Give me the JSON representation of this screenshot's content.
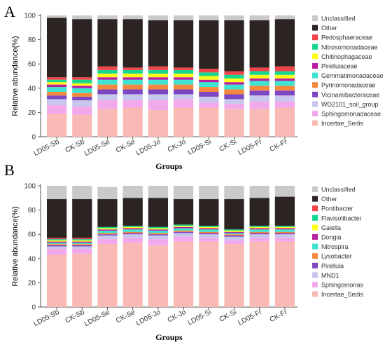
{
  "chart_data": [
    {
      "type": "bar",
      "stacked": true,
      "panel_label": "A",
      "xlabel": "Groups",
      "ylabel": "Relative abundance(%)",
      "ylim": [
        0,
        100
      ],
      "yticks": [
        0,
        20,
        40,
        60,
        80,
        100
      ],
      "categories": [
        "LD05-Sb",
        "CK-Sb",
        "LD05-Se",
        "CK-Se",
        "LD05-Jo",
        "CK-Jo",
        "LD05-Si",
        "CK-Si",
        "LD05-Fr",
        "CK-Fr"
      ],
      "legend_position": "right",
      "series": [
        {
          "name": "Incertae_Sedis",
          "color": "#f9b9b5",
          "values": [
            19,
            18,
            23,
            24,
            22,
            24,
            24,
            23,
            23,
            24
          ]
        },
        {
          "name": "Sphingomonadaceae",
          "color": "#f2a9ec",
          "values": [
            7,
            7,
            7,
            6,
            8,
            7,
            4,
            4,
            6,
            5
          ]
        },
        {
          "name": "WD2101_soil_group",
          "color": "#c8c6ec",
          "values": [
            5,
            5,
            5,
            5,
            5,
            4,
            5,
            4,
            5,
            5
          ]
        },
        {
          "name": "Vicinamibacteraceae",
          "color": "#7d46c2",
          "values": [
            3,
            3,
            4,
            4,
            4,
            4,
            4,
            4,
            4,
            4
          ]
        },
        {
          "name": "Pyrinomonadaceae",
          "color": "#f5883d",
          "values": [
            3,
            3,
            4,
            4,
            4,
            4,
            4,
            4,
            4,
            4
          ]
        },
        {
          "name": "Gemmatimonadaceae",
          "color": "#3fe3cf",
          "values": [
            4,
            4,
            4,
            4,
            4,
            4,
            4,
            4,
            4,
            4
          ]
        },
        {
          "name": "Pirellulaceae",
          "color": "#b81e9e",
          "values": [
            2,
            2,
            2,
            2,
            2,
            2,
            2,
            2,
            2,
            2
          ]
        },
        {
          "name": "Chitinophagaceae",
          "color": "#ffff1a",
          "values": [
            2,
            2,
            3,
            3,
            3,
            3,
            3,
            3,
            3,
            3
          ]
        },
        {
          "name": "Nitrosomonadaceae",
          "color": "#17d68f",
          "values": [
            2,
            3,
            3,
            3,
            3,
            3,
            3,
            3,
            3,
            3
          ]
        },
        {
          "name": "Pedosphaeraceae",
          "color": "#f0434a",
          "values": [
            2,
            2,
            3,
            2,
            3,
            2,
            3,
            3,
            3,
            4
          ]
        },
        {
          "name": "Other",
          "color": "#2c2323",
          "values": [
            49,
            48,
            39,
            40,
            38,
            39,
            40,
            42,
            39,
            39
          ]
        },
        {
          "name": "Unclassified",
          "color": "#c9c9c9",
          "values": [
            2,
            3,
            3,
            3,
            4,
            4,
            4,
            4,
            4,
            3
          ]
        }
      ]
    },
    {
      "type": "bar",
      "stacked": true,
      "panel_label": "B",
      "xlabel": "Groups",
      "ylabel": "Relative abundance(%)",
      "ylim": [
        0,
        100
      ],
      "yticks": [
        0,
        20,
        40,
        60,
        80,
        100
      ],
      "categories": [
        "LD05-Sb",
        "CK-Sb",
        "LD05-Se",
        "CK-Se",
        "LD05-Jo",
        "CK-Jo",
        "LD05-Si",
        "CK-Si",
        "LD05-Fr",
        "CK-Fr"
      ],
      "legend_position": "right",
      "series": [
        {
          "name": "Incertae_Sedis",
          "color": "#f9b9b5",
          "values": [
            43,
            44,
            52,
            53,
            51,
            54,
            54,
            52,
            54,
            54
          ]
        },
        {
          "name": "Sphingomonas",
          "color": "#f2a9ec",
          "values": [
            5,
            4,
            4,
            4,
            5,
            4,
            3,
            3,
            3,
            3
          ]
        },
        {
          "name": "MND1",
          "color": "#c8c6ec",
          "values": [
            2,
            2,
            3,
            3,
            3,
            3,
            3,
            3,
            3,
            3
          ]
        },
        {
          "name": "Pirellula",
          "color": "#7d46c2",
          "values": [
            1,
            1,
            1,
            1,
            1,
            1,
            1,
            1,
            1,
            1
          ]
        },
        {
          "name": "Lysobacter",
          "color": "#f5883d",
          "values": [
            1,
            1,
            1,
            1,
            1,
            1,
            1,
            1,
            1,
            1
          ]
        },
        {
          "name": "Nitrospira",
          "color": "#3fe3cf",
          "values": [
            1,
            1,
            2,
            2,
            2,
            2,
            2,
            1,
            2,
            2
          ]
        },
        {
          "name": "Dongia",
          "color": "#b81e9e",
          "values": [
            1,
            1,
            1,
            1,
            1,
            1,
            1,
            1,
            1,
            1
          ]
        },
        {
          "name": "Gaiella",
          "color": "#ffff1a",
          "values": [
            1,
            1,
            1,
            1,
            1,
            1,
            1,
            1,
            1,
            1
          ]
        },
        {
          "name": "Flavisolibacter",
          "color": "#17d68f",
          "values": [
            1,
            1,
            1,
            1,
            1,
            1,
            1,
            1,
            1,
            1
          ]
        },
        {
          "name": "Pontibacter",
          "color": "#f0434a",
          "values": [
            1,
            1,
            0,
            0,
            0,
            0,
            0,
            0,
            0,
            0
          ]
        },
        {
          "name": "Other",
          "color": "#2c2323",
          "values": [
            32,
            32,
            23,
            23,
            24,
            21,
            22,
            25,
            23,
            24
          ]
        },
        {
          "name": "Unclassified",
          "color": "#c9c9c9",
          "values": [
            11,
            11,
            10,
            10,
            10,
            11,
            11,
            11,
            10,
            9
          ]
        }
      ]
    }
  ]
}
